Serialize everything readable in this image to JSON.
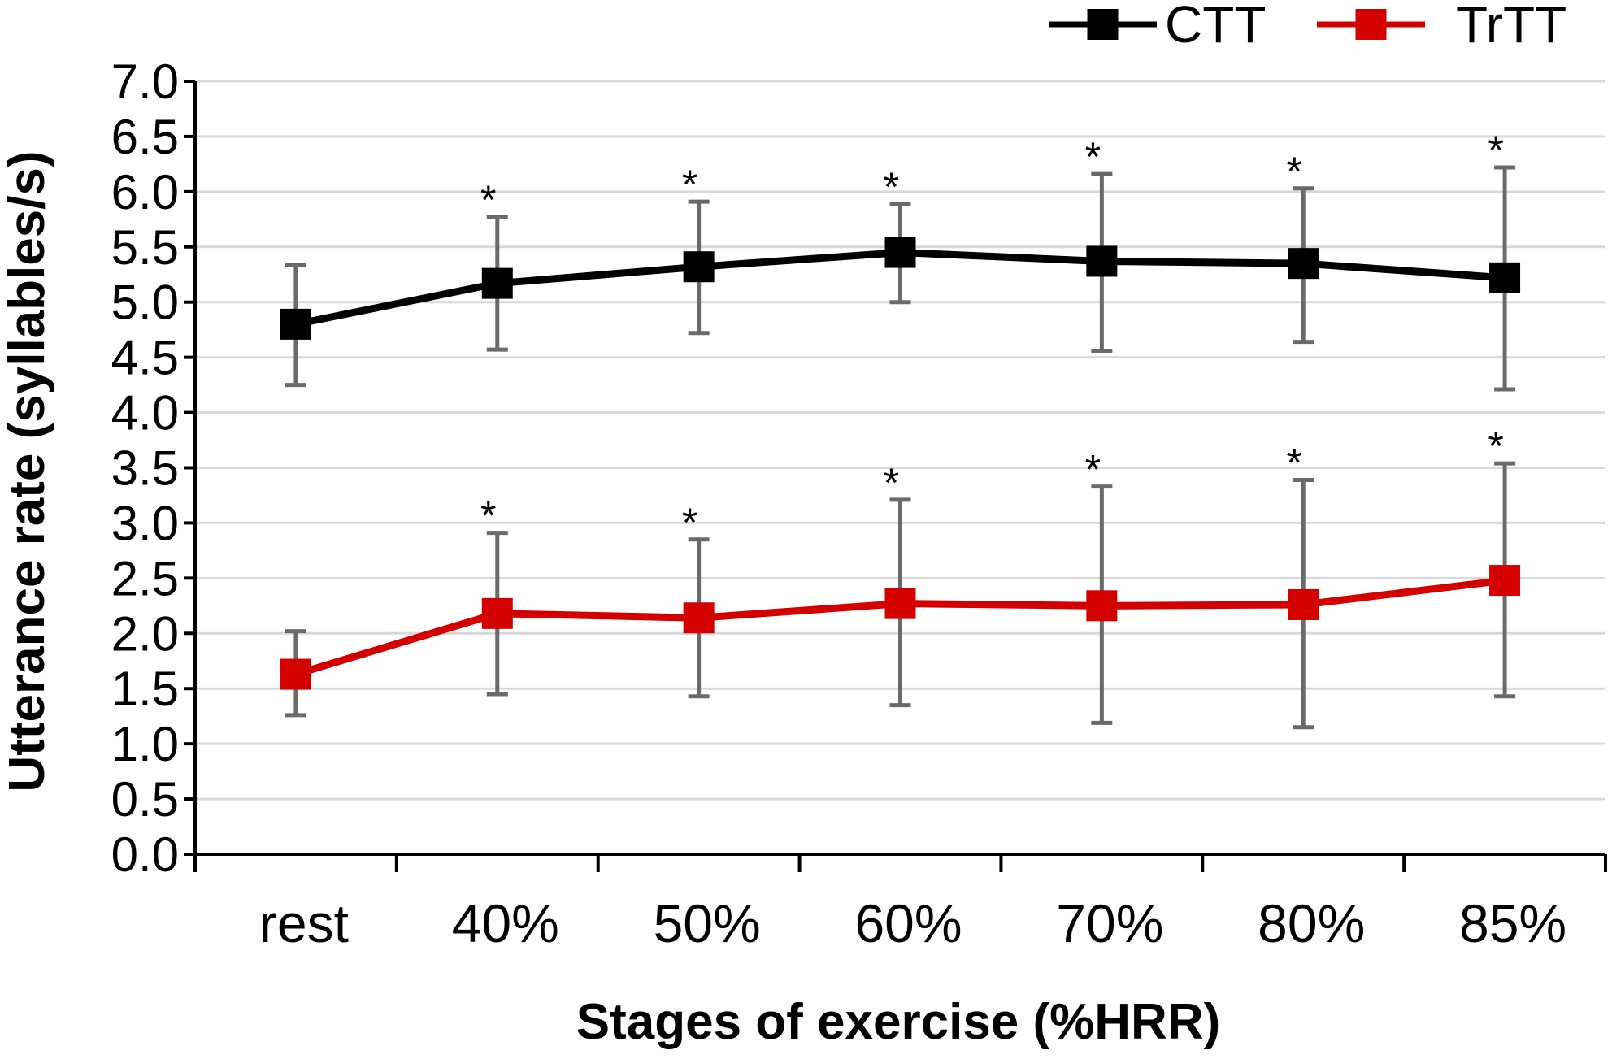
{
  "chart_data": {
    "type": "line",
    "title": "",
    "xlabel": "Stages of exercise (%HRR)",
    "ylabel": "Utterance rate (syllables/s)",
    "ylim": [
      0,
      7.0
    ],
    "yticks": [
      "0.0",
      "0.5",
      "1.0",
      "1.5",
      "2.0",
      "2.5",
      "3.0",
      "3.5",
      "4.0",
      "4.5",
      "5.0",
      "5.5",
      "6.0",
      "6.5",
      "7.0"
    ],
    "categories": [
      "rest",
      "40%",
      "50%",
      "60%",
      "70%",
      "80%",
      "85%"
    ],
    "grid": true,
    "legend_position": "top-right",
    "series": [
      {
        "name": "CTT",
        "color": "#000000",
        "values": [
          4.8,
          5.17,
          5.32,
          5.45,
          5.37,
          5.35,
          5.22
        ],
        "error_upper": [
          5.34,
          5.77,
          5.91,
          5.89,
          6.16,
          6.03,
          6.22
        ],
        "error_lower": [
          4.25,
          4.57,
          4.72,
          5.0,
          4.56,
          4.64,
          4.21
        ],
        "significance": [
          "",
          "*",
          "*",
          "*",
          "*",
          "*",
          "*"
        ]
      },
      {
        "name": "TrTT",
        "color": "#d40000",
        "values": [
          1.63,
          2.18,
          2.14,
          2.27,
          2.25,
          2.26,
          2.48
        ],
        "error_upper": [
          2.02,
          2.91,
          2.85,
          3.21,
          3.33,
          3.39,
          3.54
        ],
        "error_lower": [
          1.26,
          1.45,
          1.43,
          1.35,
          1.19,
          1.15,
          1.43
        ],
        "significance": [
          "",
          "*",
          "*",
          "*",
          "*",
          "*",
          "*"
        ]
      }
    ],
    "error_bar_color": "#6a6a6a",
    "grid_color": "#d9d9d9"
  }
}
